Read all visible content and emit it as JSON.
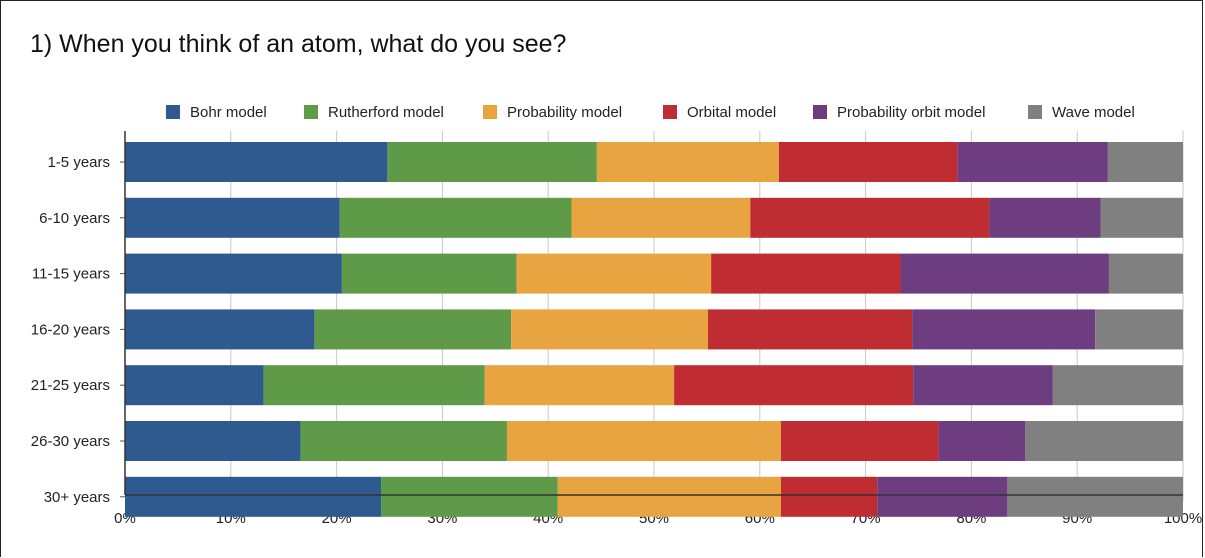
{
  "chart_data": {
    "type": "bar",
    "orientation": "horizontal",
    "stacked": true,
    "title": "1) When you think of an atom, what do you see?",
    "categories": [
      "1-5 years",
      "6-10 years",
      "11-15 years",
      "16-20 years",
      "21-25 years",
      "26-30 years",
      "30+ years"
    ],
    "series": [
      {
        "name": "Bohr model",
        "color": "#2e5a8f",
        "values": [
          24.8,
          20.3,
          20.5,
          17.9,
          13.1,
          16.6,
          24.2
        ]
      },
      {
        "name": "Rutherford model",
        "color": "#5f9a48",
        "values": [
          19.8,
          21.9,
          16.5,
          18.6,
          20.9,
          19.5,
          16.7
        ]
      },
      {
        "name": "Probability model",
        "color": "#e8a440",
        "values": [
          17.2,
          16.9,
          18.4,
          18.6,
          17.9,
          25.9,
          21.1
        ]
      },
      {
        "name": "Orbital model",
        "color": "#bf2d33",
        "values": [
          16.9,
          22.6,
          17.9,
          19.3,
          22.6,
          14.9,
          9.1
        ]
      },
      {
        "name": "Probability orbit model",
        "color": "#6e3d7f",
        "values": [
          14.2,
          10.5,
          19.7,
          17.3,
          13.2,
          8.2,
          12.3
        ]
      },
      {
        "name": "Wave model",
        "color": "#808080",
        "values": [
          7.1,
          7.8,
          7.0,
          8.3,
          12.3,
          14.9,
          16.6
        ]
      }
    ],
    "xlim": [
      0,
      100
    ],
    "x_ticks": [
      "0%",
      "10%",
      "20%",
      "30%",
      "40%",
      "50%",
      "60%",
      "70%",
      "80%",
      "90%",
      "100%"
    ],
    "xlabel": "",
    "ylabel": "",
    "legend_position": "top",
    "grid": true
  }
}
